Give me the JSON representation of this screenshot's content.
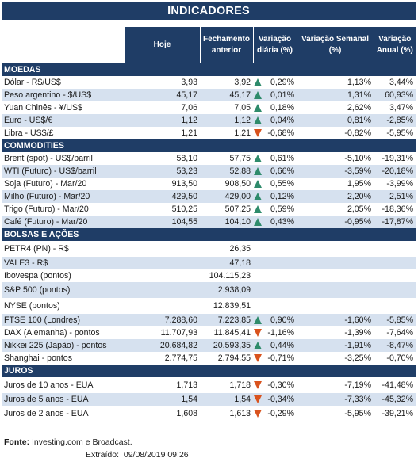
{
  "title": "INDICADORES",
  "headers": {
    "hoje": "Hoje",
    "fechamento": "Fechamento anterior",
    "var_diaria": "Variação diária (%)",
    "var_semanal": "Variação Semanal (%)",
    "var_anual": "Variação Anual (%)"
  },
  "colors": {
    "header_bg": "#1f3d66",
    "row_alt": "#d6e1ef",
    "up": "#2e8b6b",
    "down": "#d9531e"
  },
  "sections": [
    {
      "name": "MOEDAS",
      "rows": [
        {
          "name": "Dólar - R$/US$",
          "hoje": "3,93",
          "fech": "3,92",
          "dir": "up",
          "dia": "0,29%",
          "sem": "1,13%",
          "ano": "3,44%"
        },
        {
          "name": "Peso argentino - $/US$",
          "hoje": "45,17",
          "fech": "45,17",
          "dir": "up",
          "dia": "0,01%",
          "sem": "1,31%",
          "ano": "60,93%"
        },
        {
          "name": "Yuan Chinês - ¥/US$",
          "hoje": "7,06",
          "fech": "7,05",
          "dir": "up",
          "dia": "0,18%",
          "sem": "2,62%",
          "ano": "3,47%"
        },
        {
          "name": "Euro - US$/€",
          "hoje": "1,12",
          "fech": "1,12",
          "dir": "up",
          "dia": "0,04%",
          "sem": "0,81%",
          "ano": "-2,85%"
        },
        {
          "name": "Libra - US$/£",
          "hoje": "1,21",
          "fech": "1,21",
          "dir": "down",
          "dia": "-0,68%",
          "sem": "-0,82%",
          "ano": "-5,95%"
        }
      ]
    },
    {
      "name": "COMMODITIES",
      "rows": [
        {
          "name": "Brent (spot) - US$/barril",
          "hoje": "58,10",
          "fech": "57,75",
          "dir": "up",
          "dia": "0,61%",
          "sem": "-5,10%",
          "ano": "-19,31%"
        },
        {
          "name": "WTI (Futuro) - US$/barril",
          "hoje": "53,23",
          "fech": "52,88",
          "dir": "up",
          "dia": "0,66%",
          "sem": "-3,59%",
          "ano": "-20,18%"
        },
        {
          "name": "Soja (Futuro) - Mar/20",
          "hoje": "913,50",
          "fech": "908,50",
          "dir": "up",
          "dia": "0,55%",
          "sem": "1,95%",
          "ano": "-3,99%"
        },
        {
          "name": "Milho (Futuro) - Mar/20",
          "hoje": "429,50",
          "fech": "429,00",
          "dir": "up",
          "dia": "0,12%",
          "sem": "2,20%",
          "ano": "2,51%"
        },
        {
          "name": "Trigo (Futuro) - Mar/20",
          "hoje": "510,25",
          "fech": "507,25",
          "dir": "up",
          "dia": "0,59%",
          "sem": "2,05%",
          "ano": "-18,36%"
        },
        {
          "name": "Café (Futuro) - Mar/20",
          "hoje": "104,55",
          "fech": "104,10",
          "dir": "up",
          "dia": "0,43%",
          "sem": "-0,95%",
          "ano": "-17,87%"
        }
      ]
    },
    {
      "name": "BOLSAS E AÇÕES",
      "rows": [
        {
          "name": "PETR4 (PN) - R$",
          "hoje": "",
          "fech": "26,35",
          "dir": "",
          "dia": "",
          "sem": "",
          "ano": "",
          "tall": true
        },
        {
          "name": "VALE3 - R$",
          "hoje": "",
          "fech": "47,18",
          "dir": "",
          "dia": "",
          "sem": "",
          "ano": ""
        },
        {
          "name": "Ibovespa (pontos)",
          "hoje": "",
          "fech": "104.115,23",
          "dir": "",
          "dia": "",
          "sem": "",
          "ano": ""
        },
        {
          "name": "S&P 500 (pontos)",
          "hoje": "",
          "fech": "2.938,09",
          "dir": "",
          "dia": "",
          "sem": "",
          "ano": "",
          "tall": true
        },
        {
          "name": "NYSE (pontos)",
          "hoje": "",
          "fech": "12.839,51",
          "dir": "",
          "dia": "",
          "sem": "",
          "ano": "",
          "tall": true
        },
        {
          "name": "FTSE 100 (Londres)",
          "hoje": "7.288,60",
          "fech": "7.223,85",
          "dir": "up",
          "dia": "0,90%",
          "sem": "-1,60%",
          "ano": "-5,85%"
        },
        {
          "name": "DAX (Alemanha) - pontos",
          "hoje": "11.707,93",
          "fech": "11.845,41",
          "dir": "down",
          "dia": "-1,16%",
          "sem": "-1,39%",
          "ano": "-7,64%"
        },
        {
          "name": "Nikkei 225 (Japão) - pontos",
          "hoje": "20.684,82",
          "fech": "20.593,35",
          "dir": "up",
          "dia": "0,44%",
          "sem": "-1,91%",
          "ano": "-8,47%"
        },
        {
          "name": "Shanghai - pontos",
          "hoje": "2.774,75",
          "fech": "2.794,55",
          "dir": "down",
          "dia": "-0,71%",
          "sem": "-3,25%",
          "ano": "-0,70%"
        }
      ]
    },
    {
      "name": "JUROS",
      "rows": [
        {
          "name": "Juros de 10 anos - EUA",
          "hoje": "1,713",
          "fech": "1,718",
          "dir": "down",
          "dia": "-0,30%",
          "sem": "-7,19%",
          "ano": "-41,48%",
          "tall": true
        },
        {
          "name": "Juros de 5 anos - EUA",
          "hoje": "1,54",
          "fech": "1,54",
          "dir": "down",
          "dia": "-0,34%",
          "sem": "-7,33%",
          "ano": "-45,32%"
        },
        {
          "name": "Juros de 2 anos - EUA",
          "hoje": "1,608",
          "fech": "1,613",
          "dir": "down",
          "dia": "-0,29%",
          "sem": "-5,95%",
          "ano": "-39,21%",
          "tall": true
        }
      ]
    }
  ],
  "footer": {
    "source_label": "Fonte:",
    "source_text": " Investing.com e Broadcast.",
    "extracted_label": "Extraído:",
    "extracted_value": "09/08/2019 09:26"
  }
}
